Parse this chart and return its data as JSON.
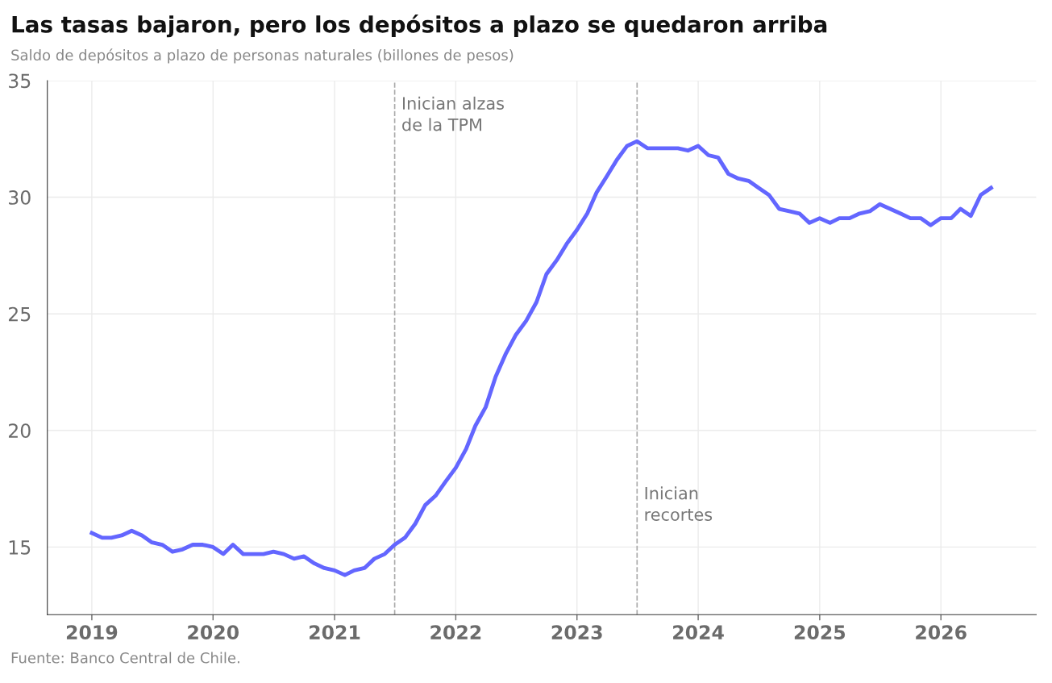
{
  "chart_data": {
    "type": "line",
    "title": "Las tasas bajaron, pero los depósitos a plazo se quedaron arriba",
    "subtitle": "Saldo de depósitos a plazo de personas naturales (billones de pesos)",
    "annotations": [
      "Fuente: Banco Central de Chile."
    ],
    "x": [
      "2019-01",
      "2019-02",
      "2019-03",
      "2019-04",
      "2019-05",
      "2019-06",
      "2019-07",
      "2019-08",
      "2019-09",
      "2019-10",
      "2019-11",
      "2019-12",
      "2020-01",
      "2020-02",
      "2020-03",
      "2020-04",
      "2020-05",
      "2020-06",
      "2020-07",
      "2020-08",
      "2020-09",
      "2020-10",
      "2020-11",
      "2020-12",
      "2021-01",
      "2021-02",
      "2021-03",
      "2021-04",
      "2021-05",
      "2021-06",
      "2021-07",
      "2021-08",
      "2021-09",
      "2021-10",
      "2021-11",
      "2021-12",
      "2022-01",
      "2022-02",
      "2022-03",
      "2022-04",
      "2022-05",
      "2022-06",
      "2022-07",
      "2022-08",
      "2022-09",
      "2022-10",
      "2022-11",
      "2022-12",
      "2023-01",
      "2023-02",
      "2023-03",
      "2023-04",
      "2023-05",
      "2023-06",
      "2023-07",
      "2023-08",
      "2023-09",
      "2023-10",
      "2023-11",
      "2023-12",
      "2024-01",
      "2024-02",
      "2024-03",
      "2024-04",
      "2024-05",
      "2024-06",
      "2024-07",
      "2024-08",
      "2024-09",
      "2024-10",
      "2024-11",
      "2024-12",
      "2025-01",
      "2025-02",
      "2025-03",
      "2025-04",
      "2025-05",
      "2025-06",
      "2025-07",
      "2025-08",
      "2025-09",
      "2025-10",
      "2025-11",
      "2025-12",
      "2026-01",
      "2026-02",
      "2026-03",
      "2026-04",
      "2026-05",
      "2026-06"
    ],
    "series": [
      {
        "color": "#6366ff",
        "values": [
          15.6,
          15.4,
          15.4,
          15.5,
          15.7,
          15.5,
          15.2,
          15.1,
          14.8,
          14.9,
          15.1,
          15.1,
          15.0,
          14.7,
          15.1,
          14.7,
          14.7,
          14.7,
          14.8,
          14.7,
          14.5,
          14.6,
          14.3,
          14.1,
          14.0,
          13.8,
          14.0,
          14.1,
          14.5,
          14.7,
          15.1,
          15.4,
          16.0,
          16.8,
          17.2,
          17.8,
          18.4,
          19.2,
          20.2,
          21.0,
          22.3,
          23.3,
          24.1,
          24.7,
          25.5,
          26.7,
          27.3,
          28.0,
          28.6,
          29.3,
          30.2,
          30.9,
          31.6,
          32.2,
          32.4,
          32.1,
          32.1,
          32.1,
          32.1,
          32.0,
          32.2,
          31.8,
          31.7,
          31.0,
          30.8,
          30.7,
          30.4,
          30.1,
          29.5,
          29.4,
          29.3,
          28.9,
          29.1,
          28.9,
          29.1,
          29.1,
          29.3,
          29.4,
          29.7,
          29.5,
          29.3,
          29.1,
          29.1,
          28.8,
          29.1,
          29.1,
          29.5,
          29.2,
          30.1,
          30.4
        ]
      }
    ],
    "xlim": [
      "2018-08-20",
      "2026-10-15"
    ],
    "xticks": [
      "2019",
      "2020",
      "2021",
      "2022",
      "2023",
      "2024",
      "2025",
      "2026"
    ],
    "ylim": [
      12.1,
      35
    ],
    "yticks": [
      15,
      20,
      25,
      30,
      35
    ],
    "ref_lines": [
      {
        "axis": "x",
        "value": "2021-07",
        "label": "Inician alzas\nde la TPM",
        "color": "#aaaaaa",
        "line_style": "dashed"
      },
      {
        "axis": "x",
        "value": "2023-07",
        "label": "Inician\nrecortes",
        "color": "#aaaaaa",
        "line_style": "dashed"
      }
    ],
    "grid": true,
    "legend": false,
    "marker": "none",
    "line_style": "solid"
  }
}
